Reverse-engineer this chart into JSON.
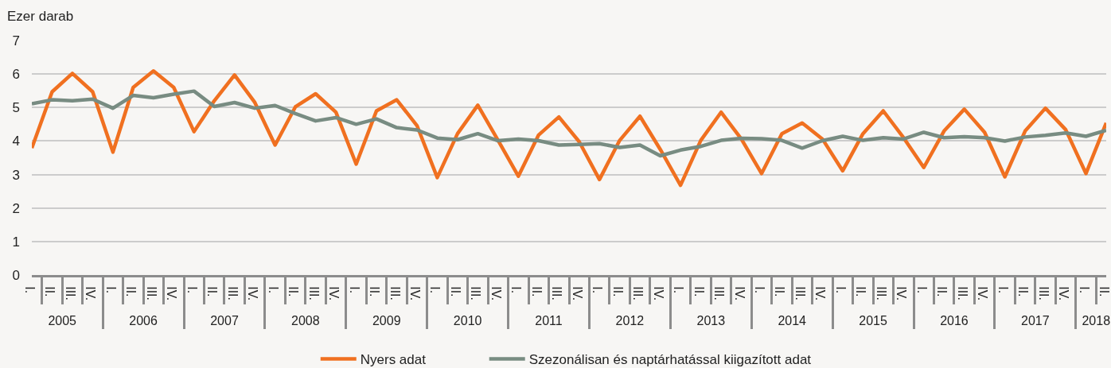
{
  "chart_data": {
    "type": "line",
    "ylabel": "Ezer darab",
    "categories": [
      [
        "2005",
        "I."
      ],
      [
        null,
        "II."
      ],
      [
        null,
        "III."
      ],
      [
        null,
        "IV."
      ],
      [
        "2006",
        "I."
      ],
      [
        null,
        "II."
      ],
      [
        null,
        "III."
      ],
      [
        null,
        "IV."
      ],
      [
        "2007",
        "I."
      ],
      [
        null,
        "II."
      ],
      [
        null,
        "III."
      ],
      [
        null,
        "IV."
      ],
      [
        "2008",
        "I."
      ],
      [
        null,
        "II."
      ],
      [
        null,
        "III."
      ],
      [
        null,
        "IV."
      ],
      [
        "2009",
        "I."
      ],
      [
        null,
        "II."
      ],
      [
        null,
        "III."
      ],
      [
        null,
        "IV."
      ],
      [
        "2010",
        "I."
      ],
      [
        null,
        "II."
      ],
      [
        null,
        "III."
      ],
      [
        null,
        "IV."
      ],
      [
        "2011",
        "I."
      ],
      [
        null,
        "II."
      ],
      [
        null,
        "III."
      ],
      [
        null,
        "IV."
      ],
      [
        "2012",
        "I."
      ],
      [
        null,
        "II."
      ],
      [
        null,
        "III."
      ],
      [
        null,
        "IV."
      ],
      [
        "2013",
        "I."
      ],
      [
        null,
        "II."
      ],
      [
        null,
        "III."
      ],
      [
        null,
        "IV."
      ],
      [
        "2014",
        "I."
      ],
      [
        null,
        "II."
      ],
      [
        null,
        "III."
      ],
      [
        null,
        "IV."
      ],
      [
        "2015",
        "I."
      ],
      [
        null,
        "II."
      ],
      [
        null,
        "III."
      ],
      [
        null,
        "IV."
      ],
      [
        "2016",
        "I."
      ],
      [
        null,
        "II."
      ],
      [
        null,
        "III."
      ],
      [
        null,
        "IV."
      ],
      [
        "2017",
        "I."
      ],
      [
        null,
        "II."
      ],
      [
        null,
        "III."
      ],
      [
        null,
        "IV."
      ],
      [
        "2018",
        "I."
      ],
      [
        null,
        "II."
      ]
    ],
    "series": [
      {
        "name": "Nyers adat",
        "color": "#f07020",
        "values": [
          3.79,
          5.47,
          6.02,
          5.47,
          3.67,
          5.6,
          6.09,
          5.6,
          4.28,
          5.2,
          5.97,
          5.15,
          3.88,
          5.02,
          5.41,
          4.86,
          3.31,
          4.9,
          5.23,
          4.46,
          2.91,
          4.22,
          5.07,
          4.02,
          2.95,
          4.18,
          4.72,
          3.98,
          2.85,
          4.02,
          4.74,
          3.75,
          2.68,
          4.02,
          4.86,
          4.06,
          3.03,
          4.22,
          4.54,
          4.06,
          3.11,
          4.22,
          4.9,
          4.1,
          3.21,
          4.3,
          4.95,
          4.26,
          2.93,
          4.3,
          4.98,
          4.34,
          3.03,
          4.54
        ]
      },
      {
        "name": "Szezonálisan és naptárhatással kiigazított adat",
        "color": "#788c82",
        "values": [
          5.11,
          5.23,
          5.2,
          5.25,
          4.98,
          5.36,
          5.29,
          5.4,
          5.49,
          5.03,
          5.15,
          4.98,
          5.06,
          4.82,
          4.6,
          4.7,
          4.5,
          4.66,
          4.4,
          4.33,
          4.09,
          4.04,
          4.22,
          4.01,
          4.06,
          4.01,
          3.88,
          3.9,
          3.92,
          3.81,
          3.88,
          3.56,
          3.73,
          3.84,
          4.02,
          4.08,
          4.07,
          4.02,
          3.79,
          4.01,
          4.14,
          4.02,
          4.1,
          4.06,
          4.26,
          4.1,
          4.13,
          4.1,
          4.0,
          4.12,
          4.17,
          4.24,
          4.14,
          4.32
        ]
      }
    ],
    "ylim": [
      0,
      7
    ],
    "yticks": [
      0,
      1,
      2,
      3,
      4,
      5,
      6,
      7
    ],
    "grid": "y",
    "legend": "bottom",
    "line_style": "solid"
  }
}
